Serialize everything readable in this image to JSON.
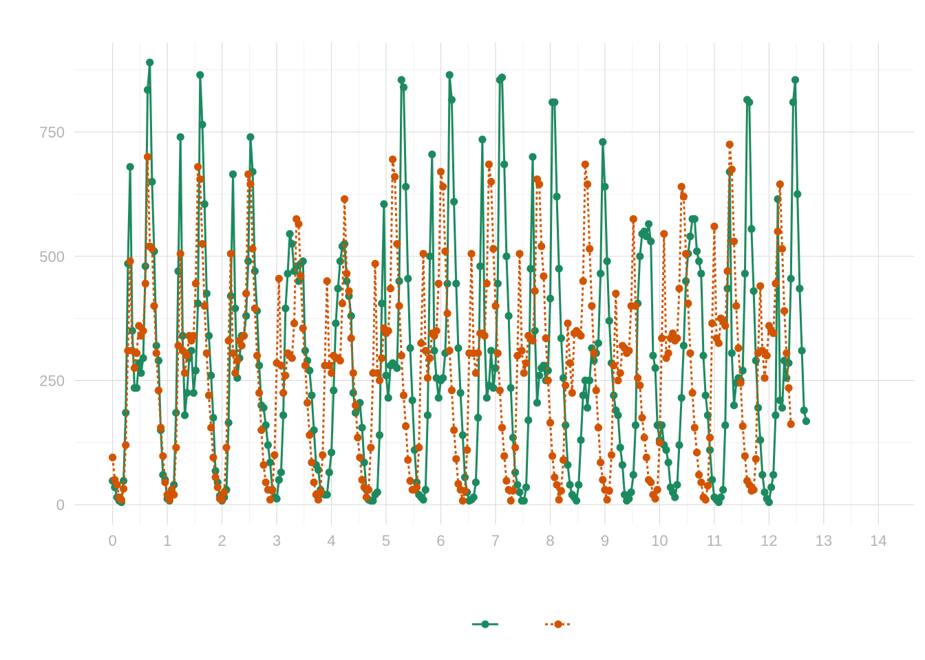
{
  "chart_data": {
    "type": "line",
    "title": "",
    "xlabel": "",
    "ylabel": "",
    "xlim": [
      -0.7,
      14.65
    ],
    "ylim": [
      -40,
      930
    ],
    "x_ticks": [
      0,
      1,
      2,
      3,
      4,
      5,
      6,
      7,
      8,
      9,
      10,
      11,
      12,
      13,
      14
    ],
    "y_ticks": [
      0,
      250,
      500,
      750
    ],
    "x_tick_labels": [
      "0",
      "1",
      "2",
      "3",
      "4",
      "5",
      "6",
      "7",
      "8",
      "9",
      "10",
      "11",
      "12",
      "13",
      "14"
    ],
    "y_tick_labels": [
      "0",
      "250",
      "500",
      "750"
    ],
    "grid": true,
    "legend_position": "bottom",
    "x_step": 0.04,
    "series": [
      {
        "color": "#1b8a5f",
        "line_style": "solid",
        "marker": "circle",
        "values": [
          48,
          35,
          15,
          8,
          5,
          48,
          185,
          485,
          680,
          350,
          235,
          235,
          285,
          265,
          295,
          480,
          835,
          890,
          650,
          510,
          320,
          290,
          150,
          60,
          50,
          12,
          8,
          30,
          40,
          185,
          470,
          740,
          340,
          180,
          225,
          295,
          310,
          225,
          270,
          405,
          865,
          765,
          605,
          425,
          340,
          260,
          175,
          68,
          45,
          18,
          8,
          15,
          30,
          165,
          420,
          665,
          395,
          255,
          295,
          340,
          340,
          380,
          490,
          740,
          670,
          470,
          390,
          280,
          200,
          195,
          160,
          120,
          85,
          30,
          15,
          12,
          50,
          65,
          180,
          395,
          465,
          545,
          525,
          470,
          480,
          450,
          485,
          490,
          310,
          290,
          270,
          220,
          150,
          80,
          70,
          30,
          22,
          20,
          20,
          65,
          105,
          230,
          365,
          435,
          490,
          520,
          525,
          450,
          420,
          380,
          225,
          185,
          195,
          205,
          155,
          85,
          30,
          10,
          8,
          8,
          20,
          25,
          140,
          405,
          605,
          260,
          215,
          280,
          285,
          280,
          275,
          450,
          855,
          840,
          640,
          455,
          315,
          210,
          110,
          45,
          20,
          15,
          10,
          30,
          180,
          500,
          705,
          310,
          255,
          215,
          250,
          255,
          305,
          445,
          865,
          815,
          610,
          445,
          315,
          225,
          140,
          55,
          25,
          8,
          10,
          15,
          45,
          175,
          480,
          735,
          340,
          215,
          240,
          310,
          235,
          275,
          445,
          855,
          860,
          685,
          500,
          380,
          235,
          135,
          65,
          40,
          25,
          8,
          8,
          35,
          170,
          475,
          700,
          350,
          205,
          260,
          275,
          280,
          250,
          270,
          415,
          810,
          810,
          620,
          475,
          335,
          255,
          160,
          80,
          40,
          20,
          15,
          8,
          40,
          130,
          220,
          250,
          195,
          250,
          315,
          290,
          305,
          325,
          465,
          730,
          640,
          490,
          370,
          285,
          220,
          190,
          180,
          115,
          80,
          20,
          8,
          12,
          25,
          60,
          160,
          405,
          500,
          545,
          550,
          540,
          565,
          530,
          300,
          275,
          160,
          130,
          160,
          120,
          110,
          85,
          35,
          25,
          15,
          40,
          120,
          215,
          320,
          450,
          505,
          540,
          575,
          575,
          510,
          490,
          465,
          300,
          220,
          180,
          110,
          50,
          15,
          10,
          5,
          15,
          30,
          160,
          435,
          670,
          305,
          200,
          245,
          255,
          250,
          270,
          465,
          815,
          810,
          555,
          430,
          290,
          195,
          130,
          60,
          25,
          12,
          5,
          35,
          60,
          180,
          615,
          210,
          195,
          290,
          255,
          285,
          455,
          810,
          855,
          625,
          435,
          310,
          190,
          168
        ]
      },
      {
        "color": "#d35400",
        "line_style": "dotted",
        "marker": "circle",
        "values": [
          95,
          50,
          40,
          15,
          10,
          32,
          120,
          310,
          490,
          310,
          275,
          305,
          360,
          340,
          350,
          445,
          700,
          520,
          515,
          400,
          305,
          230,
          155,
          98,
          45,
          20,
          10,
          30,
          20,
          115,
          320,
          505,
          310,
          265,
          300,
          340,
          330,
          340,
          445,
          680,
          655,
          525,
          400,
          305,
          220,
          155,
          95,
          55,
          35,
          12,
          10,
          25,
          115,
          330,
          505,
          305,
          265,
          290,
          330,
          320,
          340,
          425,
          665,
          645,
          515,
          395,
          300,
          225,
          150,
          80,
          45,
          30,
          10,
          28,
          100,
          285,
          455,
          280,
          225,
          260,
          305,
          300,
          295,
          365,
          575,
          565,
          460,
          355,
          280,
          205,
          140,
          85,
          45,
          20,
          10,
          25,
          100,
          280,
          450,
          280,
          265,
          300,
          295,
          295,
          290,
          405,
          615,
          465,
          430,
          335,
          265,
          200,
          135,
          95,
          50,
          35,
          15,
          30,
          115,
          265,
          485,
          265,
          250,
          295,
          355,
          345,
          350,
          435,
          695,
          660,
          525,
          400,
          300,
          220,
          158,
          90,
          48,
          30,
          30,
          35,
          115,
          325,
          505,
          310,
          255,
          295,
          345,
          340,
          350,
          445,
          670,
          640,
          510,
          385,
          310,
          230,
          150,
          92,
          42,
          30,
          8,
          28,
          110,
          305,
          505,
          305,
          265,
          305,
          345,
          345,
          340,
          445,
          685,
          650,
          515,
          400,
          305,
          230,
          155,
          98,
          48,
          30,
          8,
          28,
          115,
          300,
          505,
          310,
          265,
          285,
          340,
          335,
          330,
          430,
          655,
          645,
          520,
          460,
          335,
          250,
          165,
          98,
          55,
          40,
          10,
          28,
          90,
          240,
          365,
          285,
          225,
          345,
          350,
          345,
          340,
          450,
          685,
          645,
          515,
          400,
          305,
          230,
          155,
          85,
          50,
          30,
          10,
          28,
          100,
          280,
          425,
          250,
          265,
          320,
          315,
          305,
          310,
          400,
          575,
          400,
          255,
          240,
          175,
          135,
          95,
          50,
          45,
          20,
          12,
          30,
          125,
          335,
          545,
          295,
          305,
          335,
          345,
          330,
          335,
          435,
          640,
          620,
          505,
          405,
          305,
          225,
          155,
          105,
          60,
          45,
          15,
          10,
          38,
          135,
          365,
          560,
          335,
          325,
          375,
          370,
          360,
          470,
          725,
          675,
          530,
          400,
          315,
          245,
          158,
          98,
          48,
          40,
          28,
          30,
          92,
          305,
          440,
          310,
          255,
          300,
          360,
          350,
          345,
          445,
          550,
          645,
          515,
          390,
          305,
          235,
          162
        ]
      }
    ]
  },
  "colors": {
    "series_1": "#1b8a5f",
    "series_2": "#d35400",
    "grid_major": "#d9d9d9",
    "grid_minor": "#ebebeb",
    "tick_text": "#b3b3b3",
    "background": "#ffffff"
  }
}
